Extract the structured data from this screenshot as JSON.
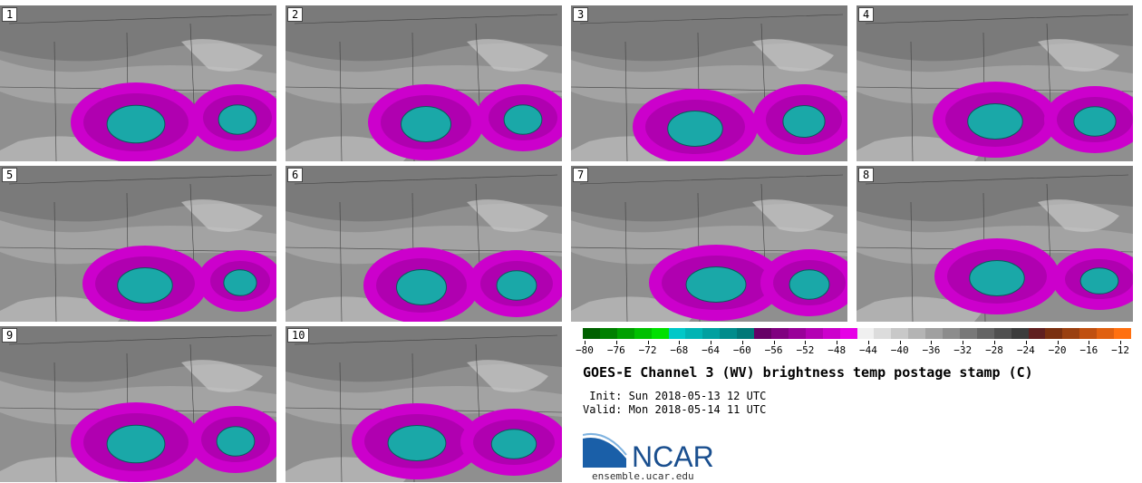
{
  "panels": [
    "1",
    "2",
    "3",
    "4",
    "5",
    "6",
    "7",
    "8",
    "9",
    "10"
  ],
  "colorbar": {
    "colors": [
      "#006000",
      "#008000",
      "#00a000",
      "#00c000",
      "#00e000",
      "#00c8c8",
      "#00b4b4",
      "#00a0a0",
      "#008c8c",
      "#007878",
      "#660066",
      "#800080",
      "#990099",
      "#b300b3",
      "#cc00cc",
      "#e600e6",
      "#f0f0f0",
      "#dcdcdc",
      "#c8c8c8",
      "#b4b4b4",
      "#a0a0a0",
      "#8c8c8c",
      "#787878",
      "#646464",
      "#505050",
      "#3c3c3c",
      "#602020",
      "#7a3010",
      "#9a4010",
      "#c05010",
      "#e06010",
      "#ff7010"
    ],
    "tick_labels": [
      "−80",
      "−76",
      "−72",
      "−68",
      "−64",
      "−60",
      "−56",
      "−52",
      "−48",
      "−44",
      "−40",
      "−36",
      "−32",
      "−28",
      "−24",
      "−20",
      "−16",
      "−12"
    ]
  },
  "title": "GOES-E Channel 3 (WV) brightness temp postage stamp (C)",
  "init": " Init: Sun 2018-05-13 12 UTC",
  "valid": "Valid: Mon 2018-05-14 11 UTC",
  "logo_text": "NCAR",
  "url": "ensemble.ucar.edu"
}
